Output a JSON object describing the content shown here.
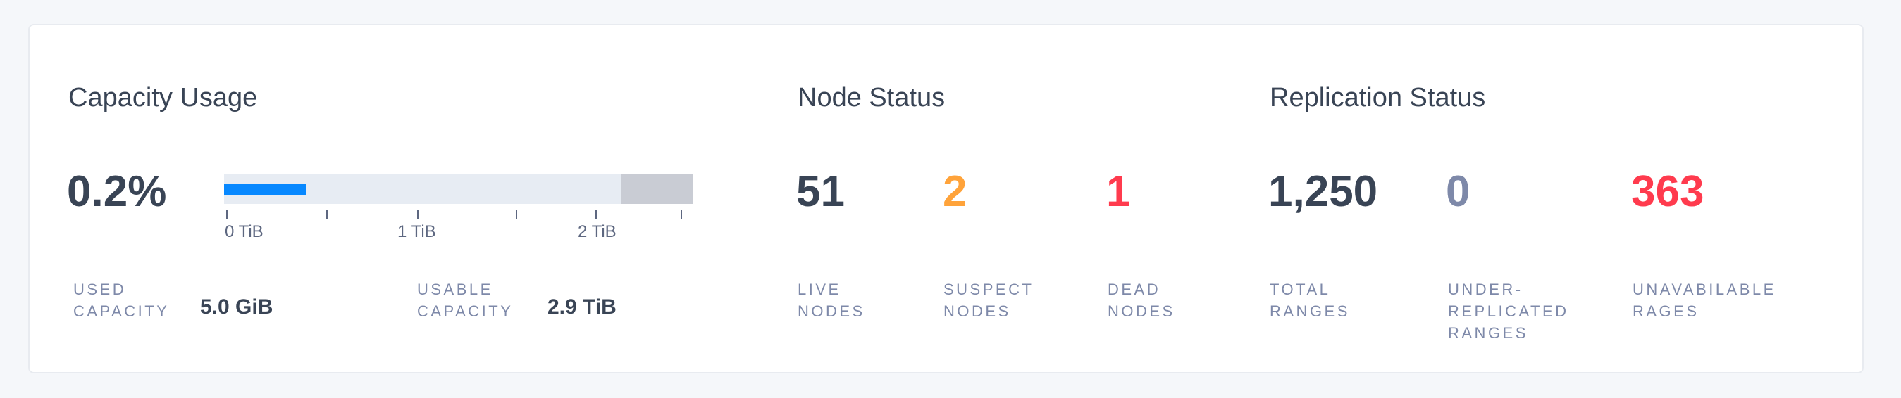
{
  "colors": {
    "accent": "#0788ff",
    "warning": "#ffa33a",
    "danger": "#ff3b4e",
    "muted": "#7e89a9",
    "text": "#394455"
  },
  "capacity": {
    "title": "Capacity Usage",
    "percent": "0.2%",
    "used_fraction_of_bar": 0.175,
    "reserved_fraction_of_bar": 0.153,
    "ticks": [
      "0 TiB",
      "1 TiB",
      "2 TiB"
    ],
    "used_label": "USED\nCAPACITY",
    "used_value": "5.0 GiB",
    "usable_label": "USABLE\nCAPACITY",
    "usable_value": "2.9 TiB"
  },
  "nodes": {
    "title": "Node Status",
    "live": {
      "value": "51",
      "label": "LIVE\nNODES"
    },
    "suspect": {
      "value": "2",
      "label": "SUSPECT\nNODES"
    },
    "dead": {
      "value": "1",
      "label": "DEAD\nNODES"
    }
  },
  "replication": {
    "title": "Replication Status",
    "total": {
      "value": "1,250",
      "label": "TOTAL\nRANGES"
    },
    "under": {
      "value": "0",
      "label": "UNDER-\nREPLICATED\nRANGES"
    },
    "unavailable": {
      "value": "363",
      "label": "UNAVABILABLE\nRAGES"
    }
  }
}
